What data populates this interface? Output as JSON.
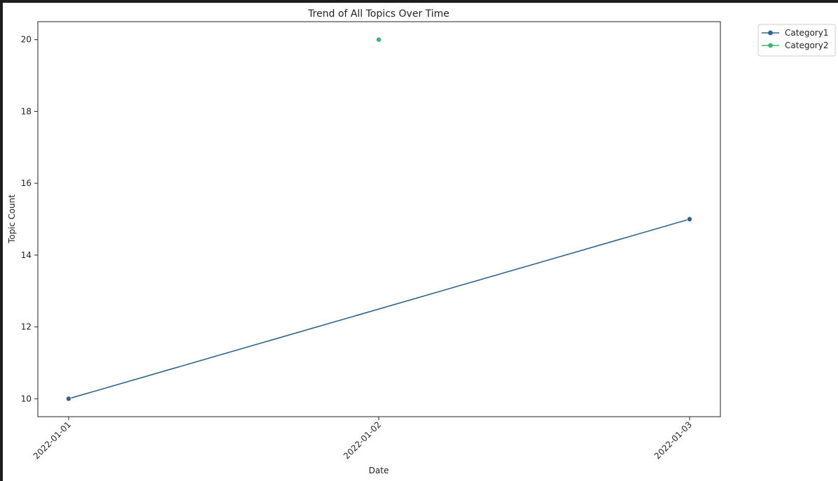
{
  "chart_data": {
    "type": "line",
    "title": "Trend of All Topics Over Time",
    "xlabel": "Date",
    "ylabel": "Topic Count",
    "x": [
      "2022-01-01",
      "2022-01-02",
      "2022-01-03"
    ],
    "ylim": [
      9.5,
      20.5
    ],
    "y_ticks": [
      10,
      12,
      14,
      16,
      18,
      20
    ],
    "grid": false,
    "legend_position": "upper-right-outside",
    "series": [
      {
        "name": "Category1",
        "color": "#33638d",
        "points": [
          {
            "x": "2022-01-01",
            "y": 10
          },
          {
            "x": "2022-01-03",
            "y": 15
          }
        ]
      },
      {
        "name": "Category2",
        "color": "#3cb371",
        "points": [
          {
            "x": "2022-01-02",
            "y": 20
          }
        ]
      }
    ]
  }
}
